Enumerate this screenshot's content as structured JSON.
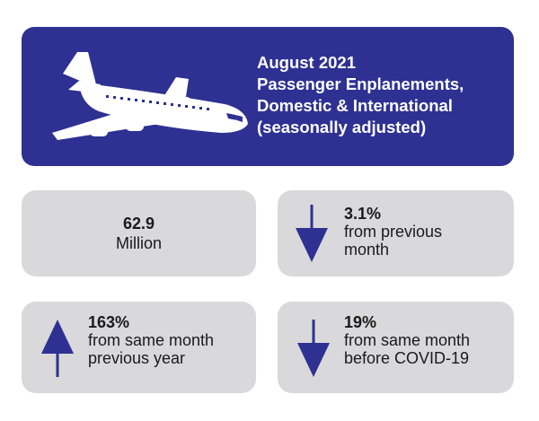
{
  "header": {
    "title_lines": [
      "August 2021",
      "Passenger Enplanements,",
      "Domestic & International",
      "(seasonally adjusted)"
    ],
    "icon": "airplane-icon",
    "background": "#2e3192"
  },
  "stats": {
    "total": {
      "value": "62.9",
      "unit": "Million"
    },
    "monthly": {
      "value": "3.1%",
      "line1": "from previous",
      "line2": "month",
      "direction": "down"
    },
    "yearly": {
      "value": "163%",
      "line1": "from same month",
      "line2": "previous year",
      "direction": "up"
    },
    "covid": {
      "value": "19%",
      "line1": "from same month",
      "line2": "before COVID-19",
      "direction": "down"
    }
  },
  "colors": {
    "accent": "#2e3192",
    "card": "#d9d9db",
    "text": "#1a1a1a"
  }
}
